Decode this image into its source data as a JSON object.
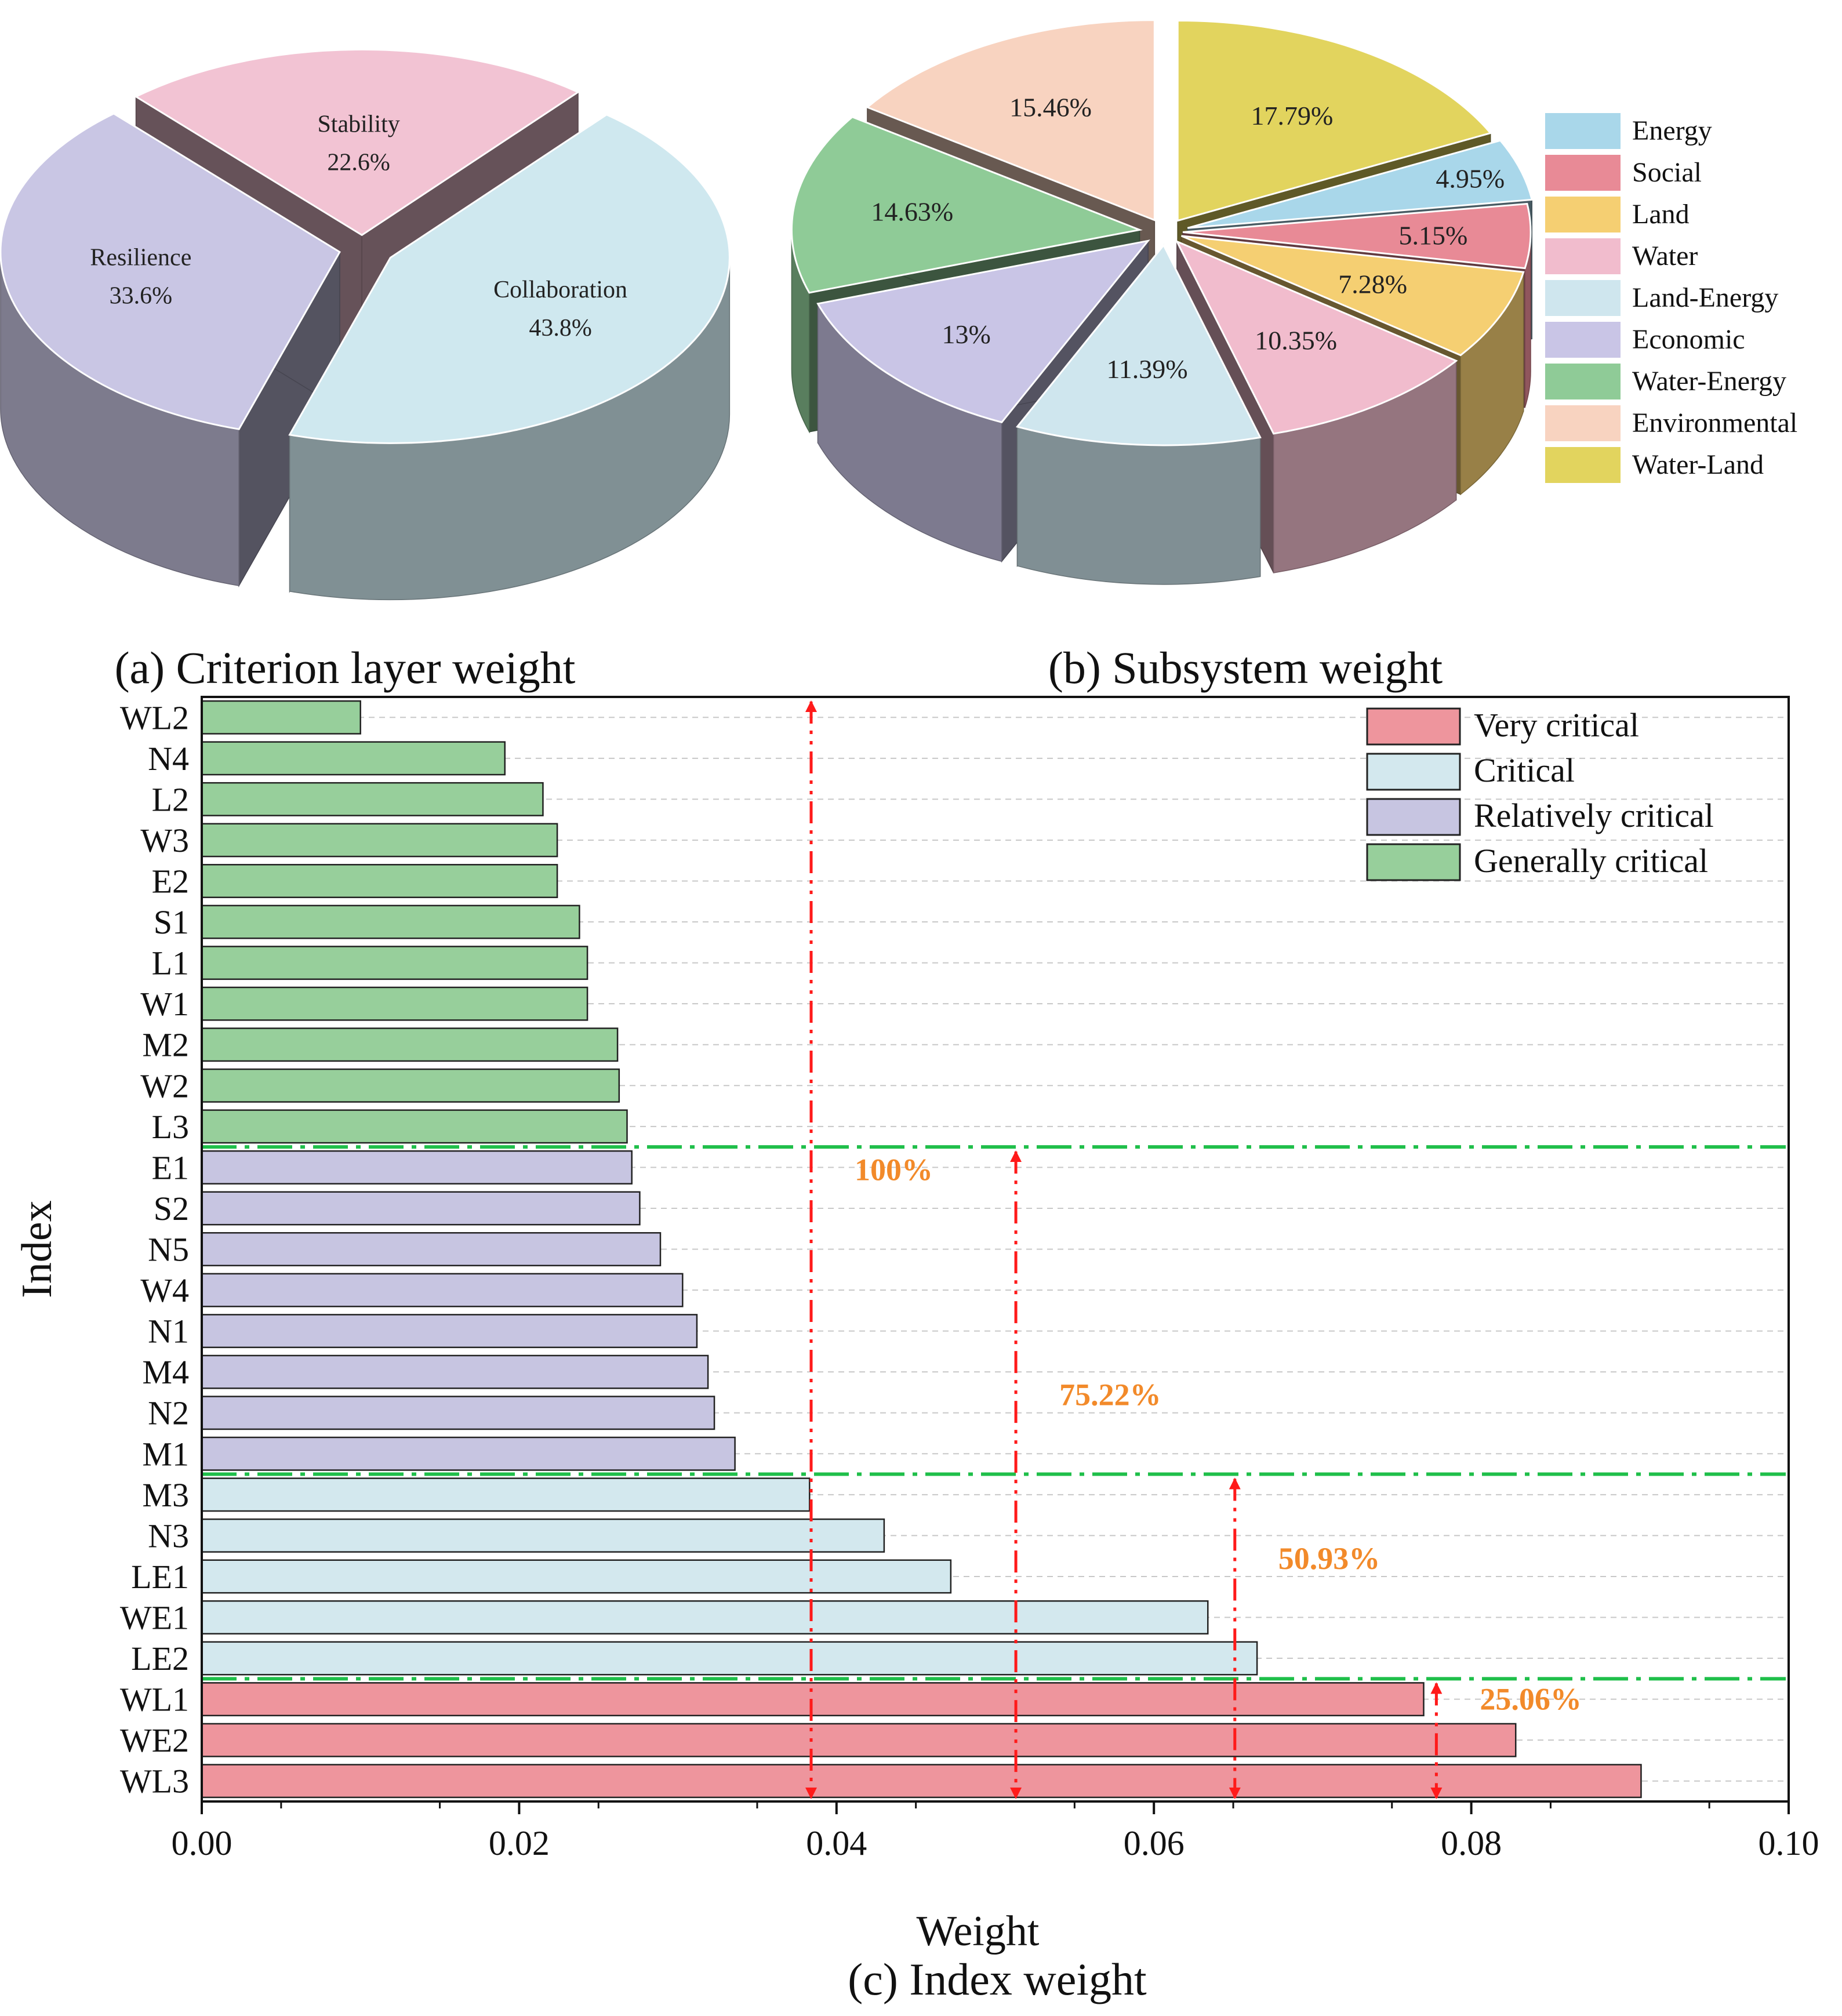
{
  "panels": {
    "a_caption": "(a) Criterion layer weight",
    "b_caption": "(b) Subsystem weight",
    "c_caption": "(c) Index weight"
  },
  "chart_data": [
    {
      "type": "pie",
      "title": "(a) Criterion layer weight",
      "categories": [
        "Collaboration",
        "Resilience",
        "Stability"
      ],
      "values": [
        43.8,
        33.6,
        22.6
      ],
      "labels": [
        "43.8%",
        "33.6%",
        "22.6%"
      ],
      "colors": [
        "#cfe8ef",
        "#c9c6e4",
        "#f2c3d3"
      ]
    },
    {
      "type": "pie",
      "title": "(b) Subsystem weight",
      "categories": [
        "Water-Land",
        "Energy",
        "Social",
        "Land",
        "Water",
        "Land-Energy",
        "Economic",
        "Water-Energy",
        "Environmental"
      ],
      "values": [
        17.79,
        4.95,
        5.15,
        7.28,
        10.35,
        11.39,
        13,
        14.63,
        15.46
      ],
      "labels": [
        "17.79%",
        "4.95%",
        "5.15%",
        "7.28%",
        "10.35%",
        "11.39%",
        "13%",
        "14.63%",
        "15.46%"
      ],
      "colors": [
        "#e2d45e",
        "#a9d7ea",
        "#e88a96",
        "#f5cf72",
        "#f1bccd",
        "#cfe6ee",
        "#c9c5e6",
        "#8fcb97",
        "#f8d3c0"
      ],
      "legend": [
        "Energy",
        "Social",
        "Land",
        "Water",
        "Land-Energy",
        "Economic",
        "Water-Energy",
        "Environmental",
        "Water-Land"
      ],
      "legend_colors": [
        "#a9d7ea",
        "#e88a96",
        "#f5cf72",
        "#f1bccd",
        "#cfe6ee",
        "#c9c5e6",
        "#8fcb97",
        "#f8d3c0",
        "#e2d45e"
      ],
      "legend_position": "right"
    },
    {
      "type": "bar",
      "orientation": "horizontal",
      "title": "(c) Index weight",
      "xlabel": "Weight",
      "ylabel": "Index",
      "xlim": [
        0,
        0.1
      ],
      "xticks": [
        "0.00",
        "0.02",
        "0.04",
        "0.06",
        "0.08",
        "0.10"
      ],
      "categories": [
        "WL2",
        "N4",
        "L2",
        "W3",
        "E2",
        "S1",
        "L1",
        "W1",
        "M2",
        "W2",
        "L3",
        "E1",
        "S2",
        "N5",
        "W4",
        "N1",
        "M4",
        "N2",
        "M1",
        "M3",
        "N3",
        "LE1",
        "WE1",
        "LE2",
        "WL1",
        "WE2",
        "WL3"
      ],
      "values": [
        0.01,
        0.0191,
        0.0215,
        0.0224,
        0.0224,
        0.0238,
        0.0243,
        0.0243,
        0.0262,
        0.0263,
        0.0268,
        0.0271,
        0.0276,
        0.0289,
        0.0303,
        0.0312,
        0.0319,
        0.0323,
        0.0336,
        0.0383,
        0.043,
        0.0472,
        0.0634,
        0.0665,
        0.077,
        0.0828,
        0.0907
      ],
      "classes": [
        "g",
        "g",
        "g",
        "g",
        "g",
        "g",
        "g",
        "g",
        "g",
        "g",
        "g",
        "r",
        "r",
        "r",
        "r",
        "r",
        "r",
        "r",
        "r",
        "c",
        "c",
        "c",
        "c",
        "c",
        "v",
        "v",
        "v"
      ],
      "legend": [
        {
          "key": "v",
          "label": "Very critical",
          "color": "#ee959d"
        },
        {
          "key": "c",
          "label": "Critical",
          "color": "#d3e8ee"
        },
        {
          "key": "r",
          "label": "Relatively critical",
          "color": "#c7c5e1"
        },
        {
          "key": "g",
          "label": "Generally critical",
          "color": "#97cf9b"
        }
      ],
      "legend_position": "top-right",
      "thresholds_after_index": [
        "L3",
        "M1",
        "LE2"
      ],
      "cumulative_annotations": [
        {
          "label": "100%",
          "x": 0.0384,
          "from": "WL2",
          "to": "WL3"
        },
        {
          "label": "75.22%",
          "x": 0.0513,
          "from": "E1",
          "to": "WL3"
        },
        {
          "label": "50.93%",
          "x": 0.0651,
          "from": "M3",
          "to": "WL3"
        },
        {
          "label": "25.06%",
          "x": 0.0778,
          "from": "WL1",
          "to": "WL3"
        }
      ]
    }
  ]
}
